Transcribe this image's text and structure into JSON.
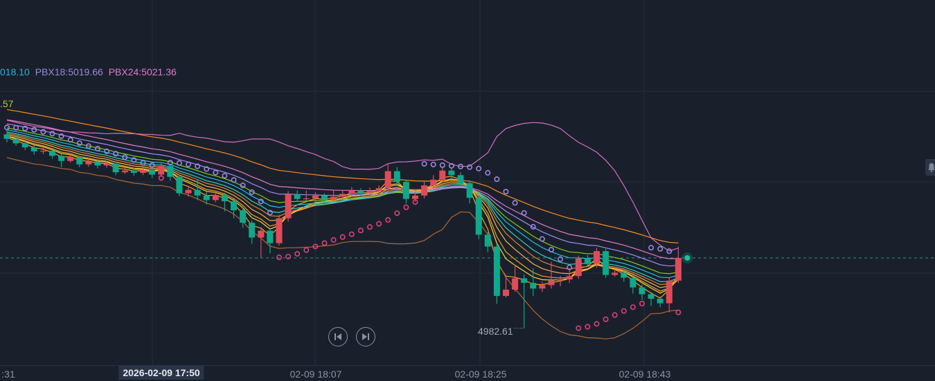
{
  "legend": [
    {
      "text": "018.10",
      "color": "#22b8d6"
    },
    {
      "text": "PBX18:5019.66",
      "color": "#9d86e0"
    },
    {
      "text": "PBX24:5021.36",
      "color": "#e27ac6"
    }
  ],
  "legend_row2": {
    "text": ".57",
    "color": "#b5c934"
  },
  "controls": {
    "prev_icon": "skip-back-icon",
    "next_icon": "skip-forward-icon",
    "alert_icon": "bell-icon"
  },
  "colors": {
    "up": "#e04b5a",
    "down": "#0fa88a",
    "background": "#19202c",
    "grid": "#242e3d"
  },
  "chart_data": {
    "type": "candlestick",
    "interval": "1m",
    "x_start": "2026-02-09 17:33",
    "x_ticks": [
      ":31",
      "2026-02-09 17:50",
      "02-09 18:07",
      "02-09 18:25",
      "02-09 18:43"
    ],
    "current_price_line": 4995.0,
    "low_label": "4982.61",
    "indicators": [
      "PBX",
      "BOLL",
      "SAR"
    ],
    "candles_ohlc_as_o_c_h_l": [
      [
        5016.8,
        5016.0,
        5017.5,
        5015.4
      ],
      [
        5016.0,
        5015.2,
        5016.5,
        5014.8
      ],
      [
        5015.2,
        5014.5,
        5015.6,
        5014.0
      ],
      [
        5014.5,
        5013.8,
        5014.9,
        5013.2
      ],
      [
        5013.8,
        5013.9,
        5014.6,
        5013.3
      ],
      [
        5013.9,
        5013.0,
        5014.2,
        5012.5
      ],
      [
        5013.0,
        5012.1,
        5013.4,
        5011.0
      ],
      [
        5012.1,
        5012.8,
        5013.3,
        5011.8
      ],
      [
        5012.8,
        5011.5,
        5013.0,
        5011.0
      ],
      [
        5011.5,
        5012.0,
        5012.6,
        5011.1
      ],
      [
        5012.0,
        5011.3,
        5012.4,
        5010.8
      ],
      [
        5011.3,
        5011.6,
        5012.1,
        5010.9
      ],
      [
        5011.6,
        5010.1,
        5012.0,
        5009.6
      ],
      [
        5010.1,
        5010.4,
        5011.0,
        5009.8
      ],
      [
        5010.4,
        5010.0,
        5010.9,
        5009.5
      ],
      [
        5010.0,
        5010.5,
        5011.0,
        5009.6
      ],
      [
        5010.5,
        5009.7,
        5010.9,
        5009.1
      ],
      [
        5009.7,
        5011.2,
        5011.8,
        5009.3
      ],
      [
        5011.2,
        5009.3,
        5011.5,
        5008.6
      ],
      [
        5009.3,
        5006.4,
        5009.6,
        5005.9
      ],
      [
        5006.4,
        5007.0,
        5007.6,
        5005.8
      ],
      [
        5007.0,
        5006.0,
        5008.9,
        5005.2
      ],
      [
        5006.0,
        5005.2,
        5006.6,
        5004.4
      ],
      [
        5005.2,
        5006.1,
        5006.8,
        5004.8
      ],
      [
        5006.1,
        5005.0,
        5006.5,
        5003.2
      ],
      [
        5005.0,
        5003.4,
        5005.4,
        5002.0
      ],
      [
        5003.4,
        5001.2,
        5003.9,
        5000.3
      ],
      [
        5001.2,
        4998.6,
        5001.6,
        4997.5
      ],
      [
        4998.6,
        4999.8,
        5000.4,
        4995.1
      ],
      [
        4999.8,
        4997.6,
        5000.3,
        4995.8
      ],
      [
        4997.6,
        5002.0,
        5002.6,
        4997.2
      ],
      [
        5002.0,
        5006.2,
        5006.8,
        5001.4
      ],
      [
        5006.2,
        5005.4,
        5006.9,
        5004.9
      ],
      [
        5005.4,
        5005.5,
        5006.9,
        5005.0
      ],
      [
        5005.5,
        5006.0,
        5006.6,
        5004.8
      ],
      [
        5006.0,
        5005.2,
        5006.4,
        5004.6
      ],
      [
        5005.2,
        5005.8,
        5006.9,
        5004.9
      ],
      [
        5005.8,
        5006.3,
        5006.9,
        5005.1
      ],
      [
        5006.3,
        5006.9,
        5007.5,
        5005.8
      ],
      [
        5006.9,
        5006.4,
        5007.3,
        5005.9
      ],
      [
        5006.4,
        5006.8,
        5007.4,
        5005.9
      ],
      [
        5006.8,
        5007.3,
        5007.8,
        5006.2
      ],
      [
        5007.3,
        5010.3,
        5011.6,
        5006.9
      ],
      [
        5010.3,
        5008.4,
        5011.0,
        5007.8
      ],
      [
        5008.4,
        5005.4,
        5008.8,
        5004.6
      ],
      [
        5005.4,
        5006.0,
        5006.7,
        5004.9
      ],
      [
        5006.0,
        5007.8,
        5008.4,
        5005.5
      ],
      [
        5007.8,
        5008.8,
        5009.6,
        5007.3
      ],
      [
        5008.8,
        5010.4,
        5011.0,
        5008.3
      ],
      [
        5010.4,
        5009.6,
        5010.9,
        5009.0
      ],
      [
        5009.6,
        5008.2,
        5010.1,
        5007.6
      ],
      [
        5008.2,
        5005.6,
        5008.7,
        5004.6
      ],
      [
        5005.6,
        4999.1,
        5006.0,
        4998.3
      ],
      [
        4999.1,
        4997.0,
        4999.5,
        4996.0
      ],
      [
        4997.0,
        4988.3,
        4997.5,
        4986.9
      ],
      [
        4988.3,
        4989.4,
        4991.8,
        4988.0
      ],
      [
        4989.4,
        4991.4,
        4993.8,
        4989.0
      ],
      [
        4991.4,
        4990.6,
        4992.1,
        4982.61
      ],
      [
        4990.6,
        4989.6,
        4993.2,
        4988.3
      ],
      [
        4989.6,
        4990.2,
        4990.8,
        4989.0
      ],
      [
        4990.2,
        4991.0,
        4994.3,
        4989.6
      ],
      [
        4991.0,
        4991.2,
        4991.8,
        4990.0
      ],
      [
        4991.2,
        4991.8,
        4993.0,
        4990.6
      ],
      [
        4991.8,
        4994.9,
        4995.4,
        4991.3
      ],
      [
        4994.9,
        4994.0,
        4995.5,
        4993.4
      ],
      [
        4994.0,
        4996.2,
        4996.8,
        4993.3
      ],
      [
        4996.2,
        4992.0,
        4996.6,
        4991.5
      ],
      [
        4992.0,
        4992.4,
        4993.0,
        4991.7
      ],
      [
        4992.4,
        4991.5,
        4992.9,
        4990.8
      ],
      [
        4991.5,
        4989.8,
        4992.0,
        4988.7
      ],
      [
        4989.8,
        4988.6,
        4990.3,
        4987.6
      ],
      [
        4988.6,
        4987.8,
        4989.0,
        4986.5
      ],
      [
        4987.8,
        4987.0,
        4988.2,
        4986.3
      ],
      [
        4987.0,
        4991.0,
        4991.6,
        4985.4
      ],
      [
        4991.0,
        4995.0,
        4997.0,
        4990.6
      ]
    ],
    "line_colors": [
      "#ff9f1a",
      "#ffd43b",
      "#f5a623",
      "#ffb347",
      "#e0842a",
      "#2dd4bf",
      "#22c1dc",
      "#84cc16",
      "#a78bfa",
      "#e879c9",
      "#ff8c1a"
    ]
  }
}
